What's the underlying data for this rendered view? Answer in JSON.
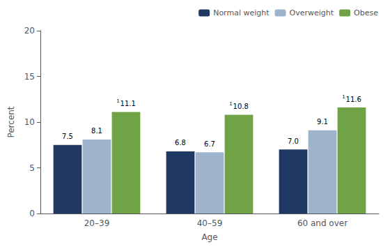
{
  "chart_data": {
    "type": "bar",
    "xlabel": "Age",
    "ylabel": "Percent",
    "categories": [
      "20–39",
      "40–59",
      "60 and over"
    ],
    "series": [
      {
        "name": "Normal weight",
        "color": "#1f3864",
        "values": [
          7.5,
          6.8,
          7.0
        ],
        "value_labels": [
          "7.5",
          "6.8",
          "7.0"
        ]
      },
      {
        "name": "Overweight",
        "color": "#9eb4cc",
        "values": [
          8.1,
          6.7,
          9.1
        ],
        "value_labels": [
          "8.1",
          "6.7",
          "9.1"
        ]
      },
      {
        "name": "Obese",
        "color": "#70a345",
        "values": [
          11.1,
          10.8,
          11.6
        ],
        "value_labels": [
          "11.1",
          "10.8",
          "11.6"
        ]
      }
    ],
    "annotations": [
      {
        "series": "Obese",
        "category": "20–39",
        "text": "1"
      },
      {
        "series": "Obese",
        "category": "40–59",
        "text": "1"
      },
      {
        "series": "Obese",
        "category": "60 and over",
        "text": "1"
      }
    ],
    "ylim": [
      0,
      20
    ],
    "yticks": [
      0,
      5,
      10,
      15,
      20
    ],
    "data_labels": true,
    "legend": "upper right",
    "grid": false
  }
}
